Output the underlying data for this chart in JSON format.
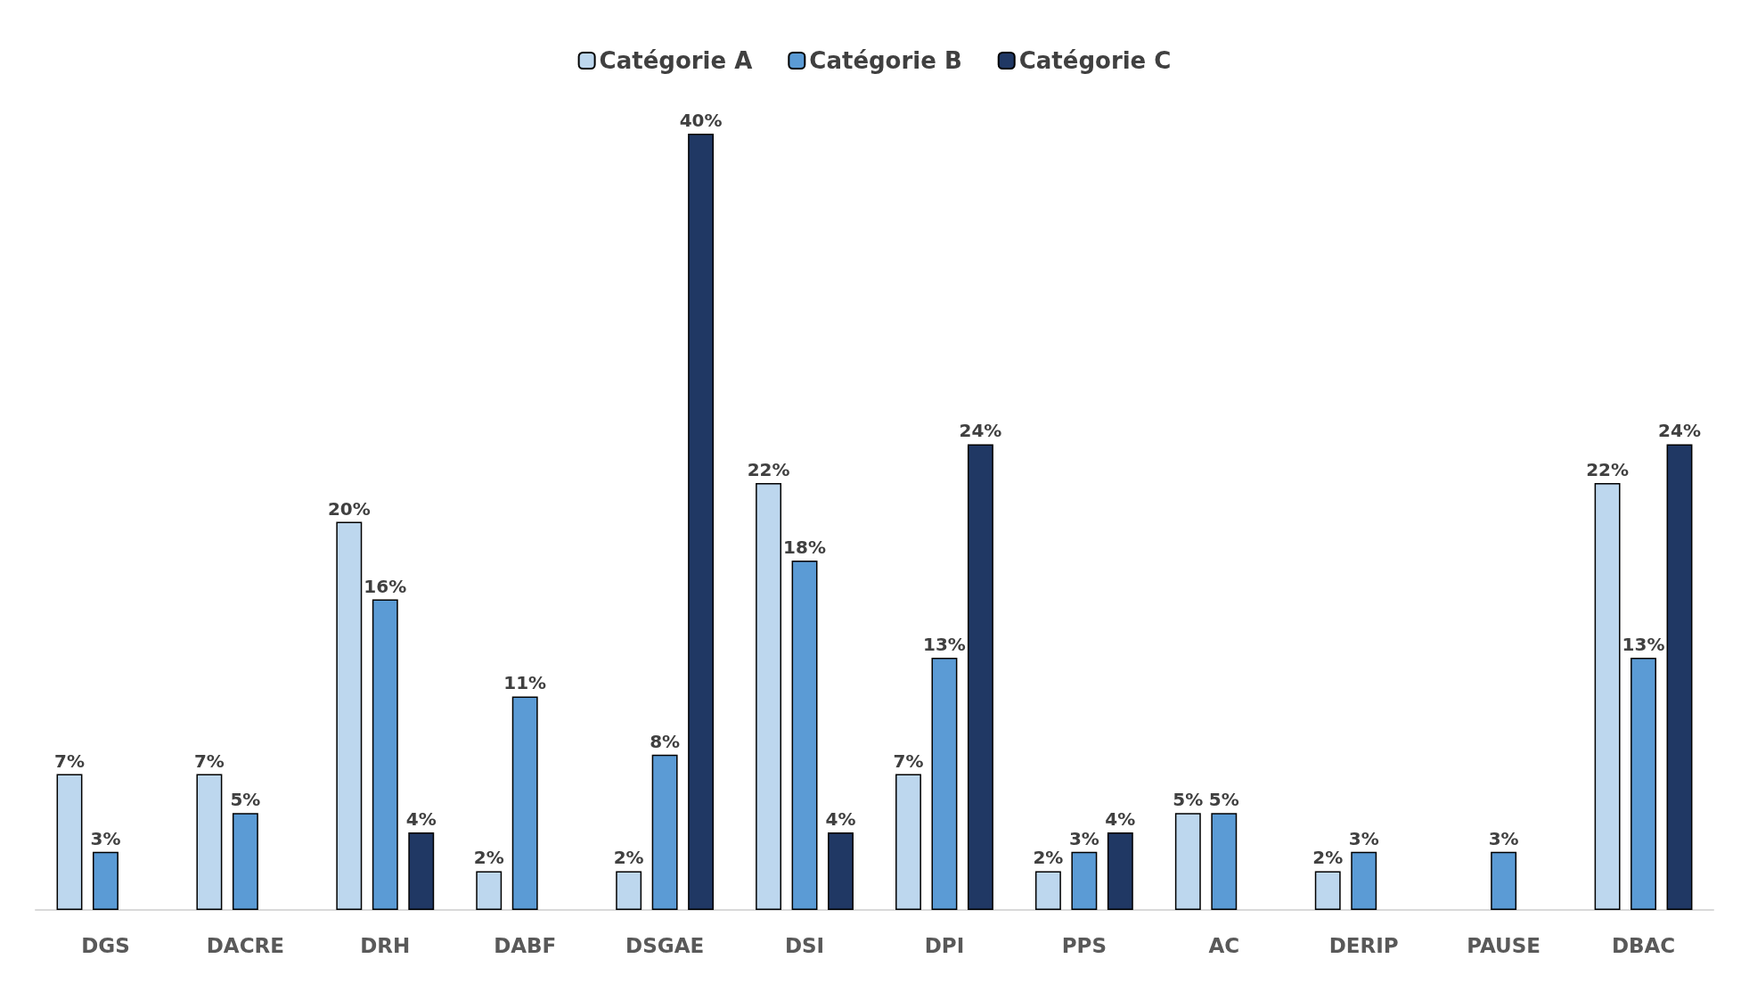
{
  "chart_data": {
    "type": "bar",
    "categories": [
      "DGS",
      "DACRE",
      "DRH",
      "DABF",
      "DSGAE",
      "DSI",
      "DPI",
      "PPS",
      "AC",
      "DERIP",
      "PAUSE",
      "DBAC"
    ],
    "series": [
      {
        "name": "Catégorie A",
        "color": "#bdd7ee",
        "values": [
          7,
          7,
          20,
          2,
          2,
          22,
          7,
          2,
          5,
          2,
          null,
          22
        ],
        "value_labels": [
          "7%",
          "7%",
          "20%",
          "2%",
          "2%",
          "22%",
          "7%",
          "2%",
          "5%",
          "2%",
          null,
          "22%"
        ]
      },
      {
        "name": "Catégorie B",
        "color": "#5b9bd5",
        "values": [
          3,
          5,
          16,
          11,
          8,
          18,
          13,
          3,
          5,
          3,
          3,
          13
        ],
        "value_labels": [
          "3%",
          "5%",
          "16%",
          "11%",
          "8%",
          "18%",
          "13%",
          "3%",
          "5%",
          "3%",
          "3%",
          "13%"
        ]
      },
      {
        "name": "Catégorie C",
        "color": "#203864",
        "values": [
          null,
          null,
          4,
          null,
          40,
          4,
          24,
          4,
          null,
          null,
          null,
          24
        ],
        "value_labels": [
          null,
          null,
          "4%",
          null,
          "40%",
          "4%",
          "24%",
          "4%",
          null,
          null,
          null,
          "24%"
        ]
      }
    ],
    "legend": "top",
    "grid": false
  }
}
